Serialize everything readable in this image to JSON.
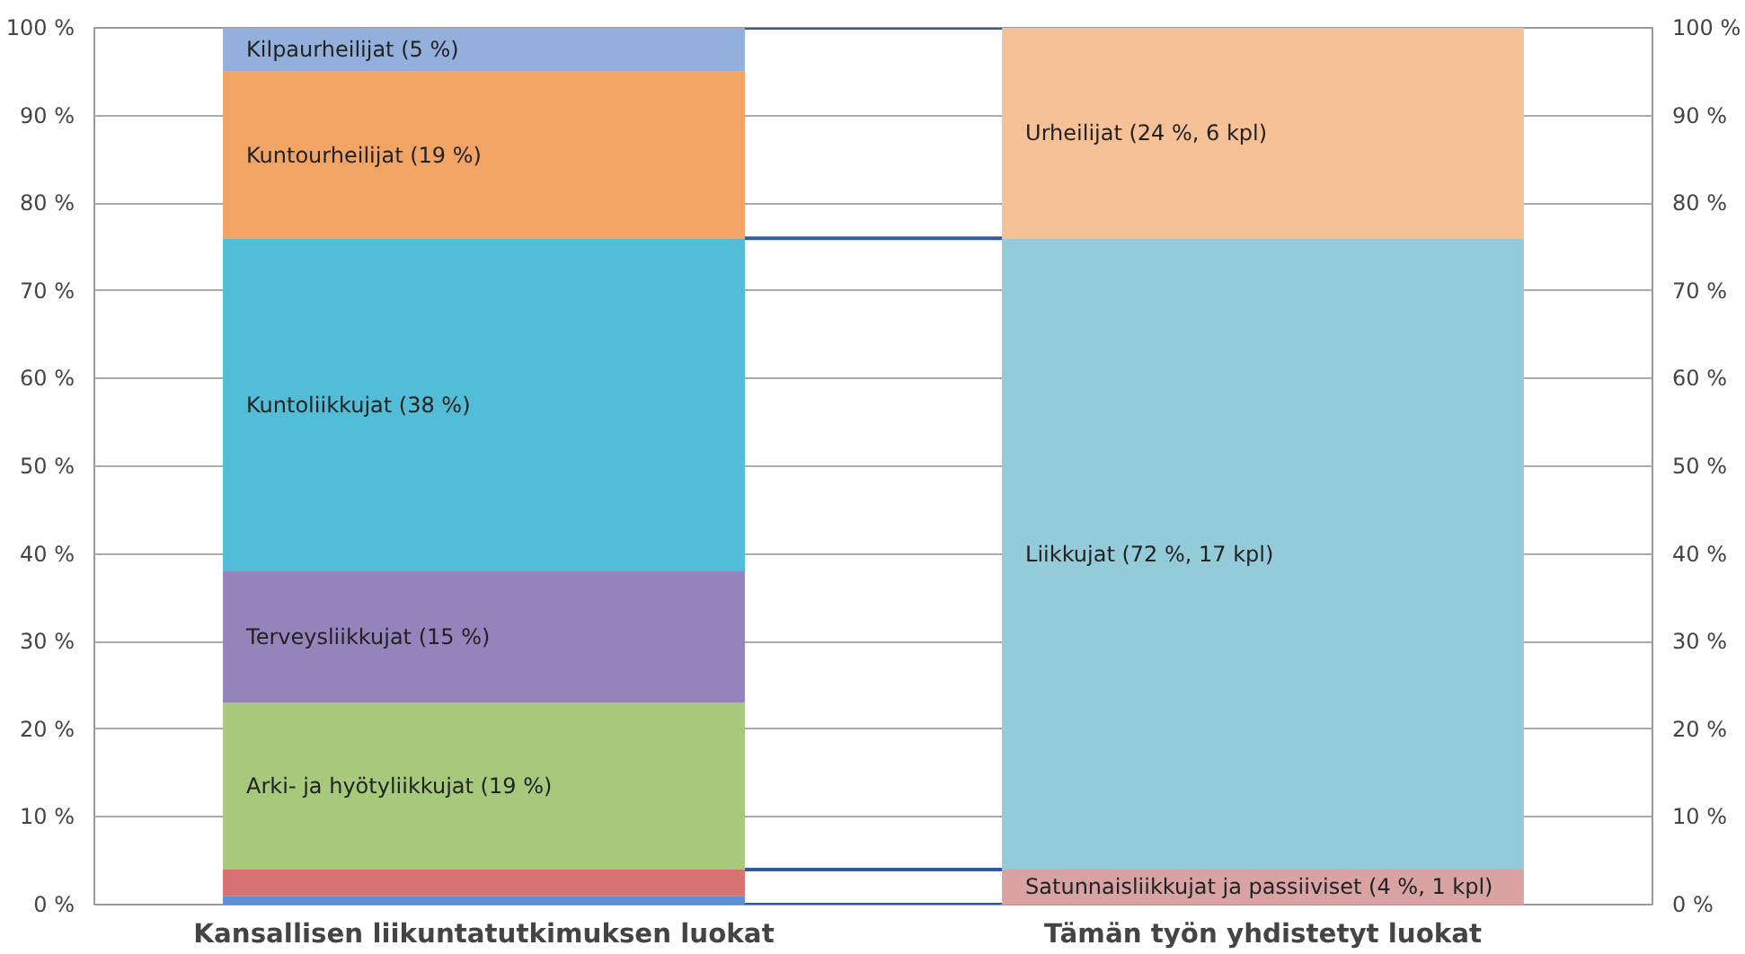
{
  "chart_data": {
    "type": "bar",
    "stacked": true,
    "categories": [
      "Kansallisen liikuntatutkimuksen luokat",
      "Tämän työn yhdistetyt luokat"
    ],
    "series": [
      {
        "color": "#5b8fd6",
        "values": [
          1,
          null
        ]
      },
      {
        "color": "#d87272",
        "values": [
          3,
          null
        ]
      },
      {
        "name": "Arki- ja hyötyliikkujat (19 %)",
        "color": "#a6c97c",
        "values": [
          19,
          null
        ]
      },
      {
        "name": "Terveysliikkujat (15 %)",
        "color": "#9384bb",
        "values": [
          15,
          null
        ]
      },
      {
        "name": "Kuntoliikkujat (38 %)",
        "color": "#52bdd6",
        "values": [
          38,
          null
        ]
      },
      {
        "name": "Kuntourheilijat (19 %)",
        "color": "#f2a465",
        "values": [
          19,
          null
        ]
      },
      {
        "name": "Kilpaurheilijat (5 %)",
        "color": "#93b0dc",
        "values": [
          5,
          null
        ]
      },
      {
        "name": "Satunnaisliikkujat ja passiiviset (4 %, 1 kpl)",
        "color": "#d9a3a3",
        "values": [
          null,
          4
        ]
      },
      {
        "name": "Liikkujat (72 %, 17 kpl)",
        "color": "#93ccd8",
        "values": [
          null,
          72
        ]
      },
      {
        "name": "Urheilijat (24 %, 6 kpl)",
        "color": "#f6c197",
        "values": [
          null,
          24
        ]
      }
    ],
    "ylim": [
      0,
      100
    ],
    "yticks": [
      {
        "value": 0,
        "label": "0 %"
      },
      {
        "value": 10,
        "label": "10 %"
      },
      {
        "value": 20,
        "label": "20 %"
      },
      {
        "value": 30,
        "label": "30 %"
      },
      {
        "value": 40,
        "label": "40 %"
      },
      {
        "value": 50,
        "label": "50 %"
      },
      {
        "value": 60,
        "label": "60 %"
      },
      {
        "value": 70,
        "label": "70 %"
      },
      {
        "value": 80,
        "label": "80 %"
      },
      {
        "value": 90,
        "label": "90 %"
      },
      {
        "value": 100,
        "label": "100 %"
      }
    ],
    "y2lim": [
      0,
      100
    ],
    "y2ticks": [
      {
        "value": 0,
        "label": "0 %"
      },
      {
        "value": 10,
        "label": "10 %"
      },
      {
        "value": 20,
        "label": "20 %"
      },
      {
        "value": 30,
        "label": "30 %"
      },
      {
        "value": 40,
        "label": "40 %"
      },
      {
        "value": 50,
        "label": "50 %"
      },
      {
        "value": 60,
        "label": "60 %"
      },
      {
        "value": 70,
        "label": "70 %"
      },
      {
        "value": 80,
        "label": "80 %"
      },
      {
        "value": 90,
        "label": "90 %"
      },
      {
        "value": 100,
        "label": "100 %"
      }
    ],
    "ref_lines": [
      {
        "axis": "y",
        "value": 100,
        "color": "#2f5aa8"
      },
      {
        "axis": "y",
        "value": 76,
        "color": "#2f5aa8"
      },
      {
        "axis": "y",
        "value": 4,
        "color": "#2f5aa8"
      },
      {
        "axis": "y",
        "value": 0,
        "color": "#2f5aa8"
      }
    ],
    "grid": "y"
  }
}
